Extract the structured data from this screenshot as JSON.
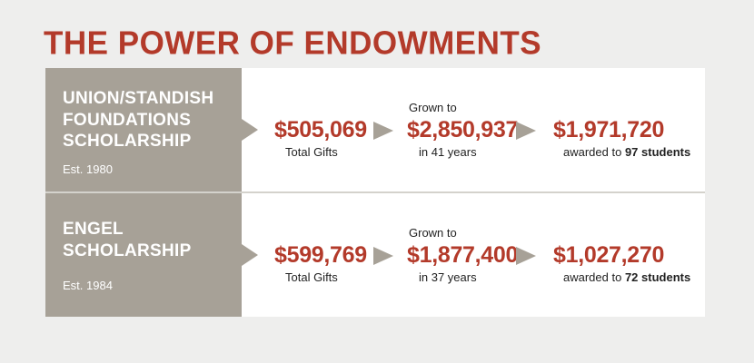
{
  "title": "THE POWER OF ENDOWMENTS",
  "colors": {
    "accent": "#b33a2a",
    "label_bg": "#a7a197",
    "panel_bg": "#ffffff",
    "page_bg": "#eeeeed"
  },
  "rows": [
    {
      "name": "UNION/STANDISH FOUNDATIONS SCHOLARSHIP",
      "established": "Est. 1980",
      "total_gifts": "$505,069",
      "total_gifts_label": "Total Gifts",
      "grown_prefix": "Grown to",
      "grown_value": "$2,850,937",
      "grown_years": "in 41 years",
      "awarded_value": "$1,971,720",
      "awarded_prefix": "awarded to",
      "awarded_students": "97 students"
    },
    {
      "name": "ENGEL SCHOLARSHIP",
      "established": "Est. 1984",
      "total_gifts": "$599,769",
      "total_gifts_label": "Total Gifts",
      "grown_prefix": "Grown to",
      "grown_value": "$1,877,400",
      "grown_years": "in 37 years",
      "awarded_value": "$1,027,270",
      "awarded_prefix": "awarded to",
      "awarded_students": "72 students"
    }
  ]
}
